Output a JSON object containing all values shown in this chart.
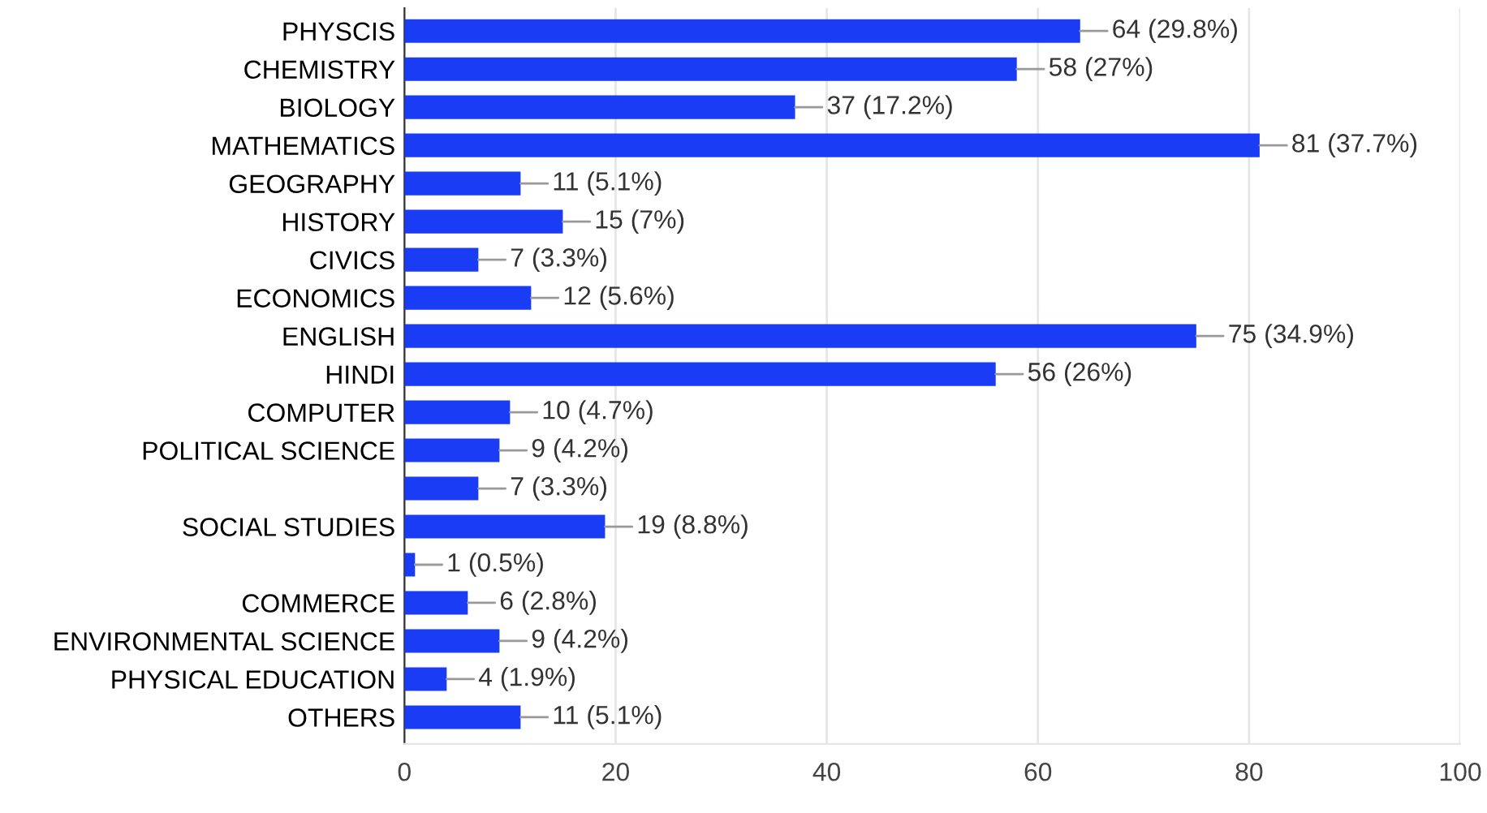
{
  "chart_data": {
    "type": "bar",
    "orientation": "horizontal",
    "categories": [
      "PHYSCIS",
      "CHEMISTRY",
      "BIOLOGY",
      "MATHEMATICS",
      "GEOGRAPHY",
      "HISTORY",
      "CIVICS",
      "ECONOMICS",
      "ENGLISH",
      "HINDI",
      "COMPUTER",
      "POLITICAL SCIENCE",
      null,
      "SOCIAL STUDIES",
      null,
      "COMMERCE",
      "ENVIRONMENTAL SCIENCE",
      "PHYSICAL EDUCATION",
      "OTHERS"
    ],
    "values": [
      64,
      58,
      37,
      81,
      11,
      15,
      7,
      12,
      75,
      56,
      10,
      9,
      7,
      19,
      1,
      6,
      9,
      4,
      11
    ],
    "value_labels": [
      "64 (29.8%)",
      "58 (27%)",
      "37 (17.2%)",
      "81 (37.7%)",
      "11 (5.1%)",
      "15 (7%)",
      "7 (3.3%)",
      "12 (5.6%)",
      "75 (34.9%)",
      "56 (26%)",
      "10 (4.7%)",
      "9 (4.2%)",
      "7 (3.3%)",
      "19 (8.8%)",
      "1 (0.5%)",
      "6 (2.8%)",
      "9 (4.2%)",
      "4 (1.9%)",
      "11 (5.1%)"
    ],
    "color": "#1a3cf5",
    "xlim": [
      0,
      100
    ],
    "xticks": [
      0,
      20,
      40,
      60,
      80,
      100
    ],
    "grid": "x"
  }
}
